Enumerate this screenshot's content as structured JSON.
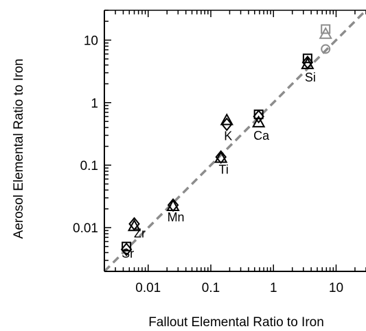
{
  "chart_data": {
    "type": "scatter",
    "xlabel": "Fallout Elemental Ratio to Iron",
    "ylabel": "Aerosol Elemental Ratio to Iron",
    "xscale": "log",
    "yscale": "log",
    "xlim": [
      0.002,
      30
    ],
    "ylim": [
      0.002,
      30
    ],
    "xticks": [
      {
        "value": 0.01,
        "label": "0.01"
      },
      {
        "value": 0.1,
        "label": "0.1"
      },
      {
        "value": 1,
        "label": "1"
      },
      {
        "value": 10,
        "label": "10"
      }
    ],
    "yticks": [
      {
        "value": 0.01,
        "label": "0.01"
      },
      {
        "value": 0.1,
        "label": "0.1"
      },
      {
        "value": 1,
        "label": "1"
      },
      {
        "value": 10,
        "label": "10"
      }
    ],
    "reference_line": {
      "type": "1:1",
      "style": "dashed",
      "color": "#8c8c8c"
    },
    "colors": {
      "black": "#000000",
      "gray": "#8c8c8c"
    },
    "points": [
      {
        "label": "Sr",
        "x": 0.0045,
        "markers": [
          {
            "shape": "square",
            "y": 0.005,
            "color": "black"
          },
          {
            "shape": "diamond",
            "y": 0.0045,
            "color": "black"
          }
        ]
      },
      {
        "label": "Zr",
        "x": 0.006,
        "markers": [
          {
            "shape": "diamond",
            "y": 0.0115,
            "color": "black"
          },
          {
            "shape": "triangle",
            "y": 0.0105,
            "color": "black"
          }
        ]
      },
      {
        "label": "Mn",
        "x": 0.025,
        "markers": [
          {
            "shape": "diamond",
            "y": 0.023,
            "color": "black"
          },
          {
            "shape": "triangle",
            "y": 0.022,
            "color": "black"
          }
        ]
      },
      {
        "label": "Ti",
        "x": 0.145,
        "markers": [
          {
            "shape": "diamond",
            "y": 0.135,
            "color": "black"
          },
          {
            "shape": "triangle",
            "y": 0.13,
            "color": "black"
          }
        ]
      },
      {
        "label": "K",
        "x": 0.18,
        "markers": [
          {
            "shape": "triangle",
            "y": 0.52,
            "color": "black"
          },
          {
            "shape": "diamond",
            "y": 0.45,
            "color": "black"
          }
        ]
      },
      {
        "label": "Ca",
        "x": 0.58,
        "markers": [
          {
            "shape": "square",
            "y": 0.65,
            "color": "black"
          },
          {
            "shape": "diamond",
            "y": 0.6,
            "color": "black"
          },
          {
            "shape": "triangle",
            "y": 0.48,
            "color": "black"
          }
        ]
      },
      {
        "label": "Si",
        "x": 3.5,
        "markers": [
          {
            "shape": "square",
            "y": 5.1,
            "color": "black"
          },
          {
            "shape": "diamond",
            "y": 4.4,
            "color": "black"
          },
          {
            "shape": "triangle",
            "y": 4.1,
            "color": "black"
          }
        ]
      },
      {
        "label": "",
        "x": 6.8,
        "markers": [
          {
            "shape": "square",
            "y": 15,
            "color": "gray"
          },
          {
            "shape": "triangle",
            "y": 12.5,
            "color": "gray"
          },
          {
            "shape": "circle",
            "y": 7.2,
            "color": "gray"
          }
        ]
      }
    ]
  }
}
